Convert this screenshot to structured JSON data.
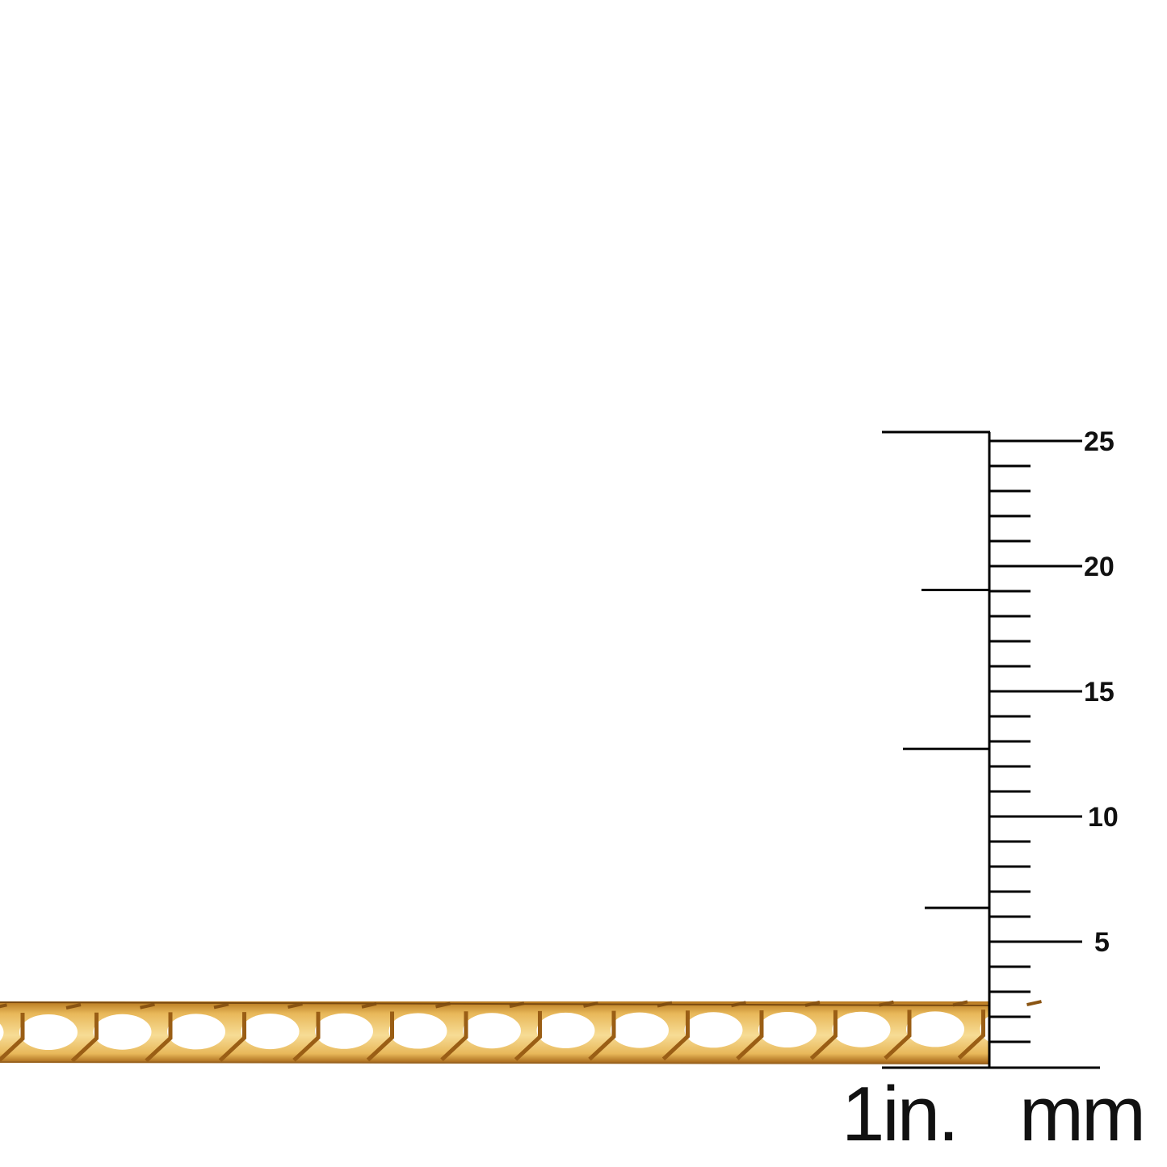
{
  "product": {
    "subject": "gold square curb link chain",
    "metal_color": "#e8b85a"
  },
  "ruler": {
    "mm_labels": [
      "25",
      "20",
      "15",
      "10",
      "5"
    ],
    "unit_inch_label": "1in.",
    "unit_mm_label": "mm",
    "mm_range": [
      0,
      25
    ],
    "inch_subdivisions": 4,
    "line_color": "#000000"
  }
}
